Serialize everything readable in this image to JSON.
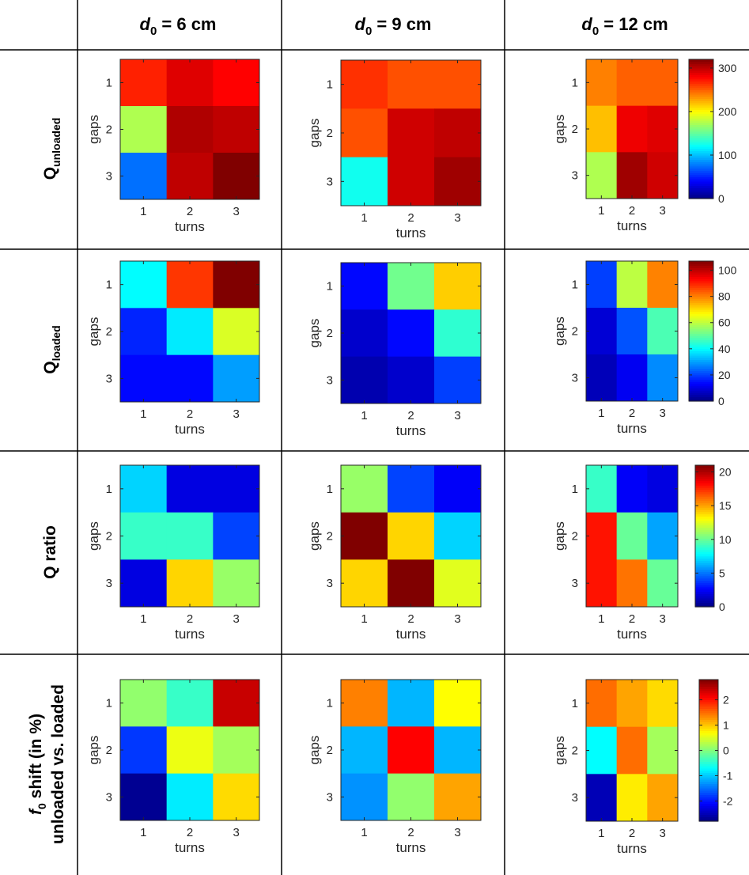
{
  "columns": [
    {
      "base": "d",
      "sub": "0",
      "rest": " = 6 cm"
    },
    {
      "base": "d",
      "sub": "0",
      "rest": " = 9 cm"
    },
    {
      "base": "d",
      "sub": "0",
      "rest": " = 12 cm"
    }
  ],
  "rows": [
    {
      "lines": [
        {
          "base": "Q",
          "sub": "unloaded",
          "rest": ""
        }
      ]
    },
    {
      "lines": [
        {
          "base": "Q",
          "sub": "loaded",
          "rest": ""
        }
      ]
    },
    {
      "lines": [
        {
          "base": "Q ratio",
          "sub": "",
          "rest": ""
        }
      ]
    },
    {
      "lines": [
        {
          "base": "f",
          "sub": "0",
          "rest": " shift (in %)"
        },
        {
          "base": "unloaded vs. loaded",
          "sub": "",
          "rest": ""
        }
      ]
    }
  ],
  "colormap": "jet",
  "chart_data": [
    {
      "type": "heatmap",
      "row": 0,
      "col": 0,
      "xlabel": "turns",
      "ylabel": "gaps",
      "x_ticks": [
        "1",
        "2",
        "3"
      ],
      "y_ticks": [
        "1",
        "2",
        "3"
      ],
      "clim": [
        0,
        320
      ],
      "values": [
        [
          270,
          290,
          280
        ],
        [
          175,
          305,
          300
        ],
        [
          75,
          300,
          325
        ]
      ]
    },
    {
      "type": "heatmap",
      "row": 0,
      "col": 1,
      "xlabel": "turns",
      "ylabel": "gaps",
      "x_ticks": [
        "1",
        "2",
        "3"
      ],
      "y_ticks": [
        "1",
        "2",
        "3"
      ],
      "clim": [
        0,
        320
      ],
      "values": [
        [
          265,
          255,
          255
        ],
        [
          255,
          295,
          300
        ],
        [
          125,
          295,
          310
        ]
      ]
    },
    {
      "type": "heatmap",
      "row": 0,
      "col": 2,
      "xlabel": "turns",
      "ylabel": "gaps",
      "x_ticks": [
        "1",
        "2",
        "3"
      ],
      "y_ticks": [
        "1",
        "2",
        "3"
      ],
      "clim": [
        0,
        320
      ],
      "values": [
        [
          240,
          250,
          250
        ],
        [
          220,
          285,
          290
        ],
        [
          175,
          310,
          295
        ]
      ],
      "colorbar": {
        "ticks": [
          0,
          100,
          200,
          300
        ]
      }
    },
    {
      "type": "heatmap",
      "row": 1,
      "col": 0,
      "xlabel": "turns",
      "ylabel": "gaps",
      "x_ticks": [
        "1",
        "2",
        "3"
      ],
      "y_ticks": [
        "1",
        "2",
        "3"
      ],
      "clim": [
        0,
        107
      ],
      "values": [
        [
          40,
          88,
          107
        ],
        [
          17,
          38,
          63
        ],
        [
          14,
          14,
          30
        ]
      ]
    },
    {
      "type": "heatmap",
      "row": 1,
      "col": 1,
      "xlabel": "turns",
      "ylabel": "gaps",
      "x_ticks": [
        "1",
        "2",
        "3"
      ],
      "y_ticks": [
        "1",
        "2",
        "3"
      ],
      "clim": [
        0,
        107
      ],
      "values": [
        [
          14,
          52,
          72
        ],
        [
          8,
          14,
          45
        ],
        [
          5,
          8,
          20
        ]
      ]
    },
    {
      "type": "heatmap",
      "row": 1,
      "col": 2,
      "xlabel": "turns",
      "ylabel": "gaps",
      "x_ticks": [
        "1",
        "2",
        "3"
      ],
      "y_ticks": [
        "1",
        "2",
        "3"
      ],
      "clim": [
        0,
        107
      ],
      "values": [
        [
          20,
          60,
          80
        ],
        [
          9,
          22,
          48
        ],
        [
          6,
          12,
          28
        ]
      ],
      "colorbar": {
        "ticks": [
          0,
          20,
          40,
          60,
          80,
          100
        ]
      }
    },
    {
      "type": "heatmap",
      "row": 2,
      "col": 0,
      "xlabel": "turns",
      "ylabel": "gaps",
      "x_ticks": [
        "1",
        "2",
        "3"
      ],
      "y_ticks": [
        "1",
        "2",
        "3"
      ],
      "clim": [
        0,
        21
      ],
      "values": [
        [
          7,
          2,
          2
        ],
        [
          9,
          9,
          4
        ],
        [
          2,
          14,
          11
        ]
      ]
    },
    {
      "type": "heatmap",
      "row": 2,
      "col": 1,
      "xlabel": "turns",
      "ylabel": "gaps",
      "x_ticks": [
        "1",
        "2",
        "3"
      ],
      "y_ticks": [
        "1",
        "2",
        "3"
      ],
      "clim": [
        0,
        21
      ],
      "values": [
        [
          11,
          4,
          2.5
        ],
        [
          21,
          14,
          7
        ],
        [
          14,
          21,
          12.5
        ]
      ]
    },
    {
      "type": "heatmap",
      "row": 2,
      "col": 2,
      "xlabel": "turns",
      "ylabel": "gaps",
      "x_ticks": [
        "1",
        "2",
        "3"
      ],
      "y_ticks": [
        "1",
        "2",
        "3"
      ],
      "clim": [
        0,
        21
      ],
      "values": [
        [
          9,
          2.5,
          2
        ],
        [
          18,
          10,
          6
        ],
        [
          18,
          16,
          10
        ]
      ],
      "colorbar": {
        "ticks": [
          0,
          5,
          10,
          15,
          20
        ]
      }
    },
    {
      "type": "heatmap",
      "row": 3,
      "col": 0,
      "xlabel": "turns",
      "ylabel": "gaps",
      "x_ticks": [
        "1",
        "2",
        "3"
      ],
      "y_ticks": [
        "1",
        "2",
        "3"
      ],
      "clim": [
        -2.8,
        2.8
      ],
      "values": [
        [
          0.1,
          -0.4,
          2.4
        ],
        [
          -1.8,
          0.6,
          0.2
        ],
        [
          -2.7,
          -0.8,
          0.9
        ]
      ]
    },
    {
      "type": "heatmap",
      "row": 3,
      "col": 1,
      "xlabel": "turns",
      "ylabel": "gaps",
      "x_ticks": [
        "1",
        "2",
        "3"
      ],
      "y_ticks": [
        "1",
        "2",
        "3"
      ],
      "clim": [
        -2.8,
        2.8
      ],
      "values": [
        [
          1.4,
          -1.1,
          0.7
        ],
        [
          -1.1,
          2.1,
          -1.1
        ],
        [
          -1.3,
          0.1,
          1.2
        ]
      ]
    },
    {
      "type": "heatmap",
      "row": 3,
      "col": 2,
      "xlabel": "turns",
      "ylabel": "gaps",
      "x_ticks": [
        "1",
        "2",
        "3"
      ],
      "y_ticks": [
        "1",
        "2",
        "3"
      ],
      "clim": [
        -2.8,
        2.8
      ],
      "values": [
        [
          1.5,
          1.2,
          0.9
        ],
        [
          -0.7,
          1.5,
          0.2
        ],
        [
          -2.5,
          0.8,
          1.2
        ]
      ],
      "colorbar": {
        "ticks": [
          -2,
          -1,
          0,
          1,
          2
        ]
      }
    }
  ]
}
